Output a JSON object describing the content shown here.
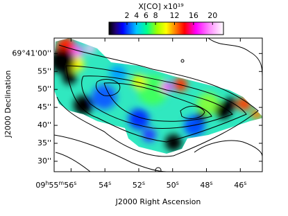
{
  "chart_data": {
    "type": "image",
    "colorbar_label": "X[CO] x10¹⁹",
    "clim": [
      -1.8,
      22.3
    ],
    "colorbar_ticks": [
      2,
      4,
      6,
      8,
      12,
      16,
      20
    ],
    "x_label": "J2000 Right Ascension",
    "y_label": "J2000 Declination",
    "xlim": [
      57.0,
      44.7
    ],
    "ylim": [
      27.1,
      64.3
    ],
    "xticks": [
      {
        "value": 56,
        "label": "09h55m56s"
      },
      {
        "value": 54,
        "label": "54s"
      },
      {
        "value": 52,
        "label": "52s"
      },
      {
        "value": 50,
        "label": "50s"
      },
      {
        "value": 48,
        "label": "48s"
      },
      {
        "value": 46,
        "label": "46s"
      }
    ],
    "yticks": [
      {
        "value": 60,
        "label": "69°41'00''"
      },
      {
        "value": 55,
        "label": "55''"
      },
      {
        "value": 50,
        "label": "50''"
      },
      {
        "value": 45,
        "label": "45''"
      },
      {
        "value": 40,
        "label": "40''"
      },
      {
        "value": 35,
        "label": "35''"
      },
      {
        "value": 30,
        "label": "30''"
      }
    ]
  }
}
